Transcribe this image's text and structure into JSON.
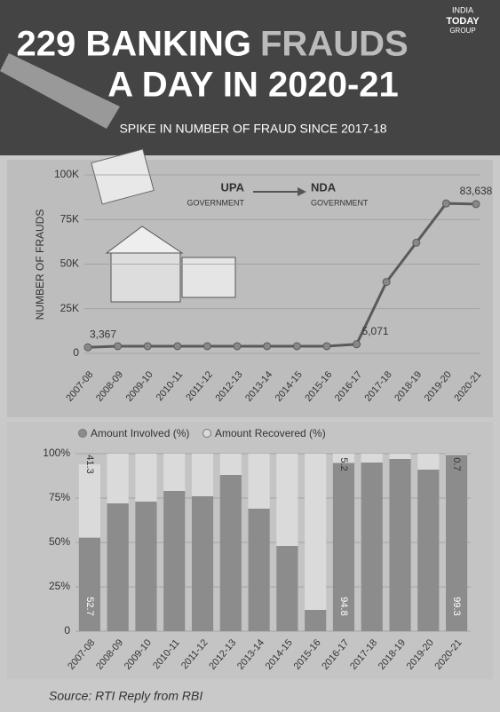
{
  "header": {
    "brand": [
      "INDIA",
      "TODAY",
      "GROUP"
    ],
    "title_parts": [
      "229 BANKING",
      "FRAUDS",
      "A DAY IN 2020-21"
    ]
  },
  "source": "Source: RTI Reply from RBI",
  "chart_data": [
    {
      "type": "line",
      "subtitle": "SPIKE IN NUMBER OF FRAUD SINCE 2017-18",
      "y_label": "NUMBER OF FRAUDS",
      "annotations": [
        "UPA",
        "GOVERNMENT",
        "NDA",
        "GOVERNMENT"
      ],
      "categories": [
        "2007-08",
        "2008-09",
        "2009-10",
        "2010-11",
        "2011-12",
        "2012-13",
        "2013-14",
        "2014-15",
        "2015-16",
        "2016-17",
        "2017-18",
        "2018-19",
        "2019-20",
        "2020-21"
      ],
      "values": [
        3367,
        4000,
        4000,
        4000,
        4000,
        4000,
        4000,
        4000,
        4000,
        5071,
        40000,
        62000,
        84000,
        83638
      ],
      "value_labels": [
        "3,367",
        null,
        null,
        null,
        null,
        null,
        null,
        null,
        null,
        "5,071",
        null,
        null,
        null,
        "83,638"
      ],
      "color": "#5a5a5a",
      "ylim": [
        0,
        100000
      ],
      "yticks": [
        0,
        {
          "value": 25000,
          "label": "25K"
        },
        {
          "value": 50000,
          "label": "50K"
        },
        {
          "value": 75000,
          "label": "75K"
        },
        {
          "value": 100000,
          "label": "100K"
        }
      ]
    },
    {
      "type": "stacked_bar",
      "categories": [
        "2007-08",
        "2008-09",
        "2009-10",
        "2010-11",
        "2011-12",
        "2012-13",
        "2013-14",
        "2014-15",
        "2015-16",
        "2016-17",
        "2017-18",
        "2018-19",
        "2019-20",
        "2020-21"
      ],
      "series": [
        {
          "name": "Amount Involved (%)",
          "color": "#8c8c8c",
          "values": [
            52.7,
            72,
            73,
            79,
            76,
            88,
            69,
            48,
            12,
            94.8,
            95,
            97,
            91,
            99.3
          ],
          "value_labels": [
            "52.7",
            null,
            null,
            null,
            null,
            null,
            null,
            null,
            null,
            "94.8",
            null,
            null,
            null,
            "99.3"
          ]
        },
        {
          "name": "Amount Recovered (%)",
          "color": "#dadada",
          "values": [
            41.3,
            28,
            27,
            21,
            24,
            12,
            31,
            52,
            88,
            5.2,
            5,
            3,
            9,
            0.7
          ],
          "value_labels": [
            "41.3",
            null,
            null,
            null,
            null,
            null,
            null,
            null,
            null,
            "5.2",
            null,
            null,
            null,
            "0.7"
          ]
        }
      ],
      "ylim": [
        0,
        100
      ],
      "yticks": [
        0,
        {
          "value": 25,
          "label": "25%"
        },
        {
          "value": 50,
          "label": "50%"
        },
        {
          "value": 75,
          "label": "75%"
        },
        {
          "value": 100,
          "label": "100%"
        }
      ]
    }
  ]
}
